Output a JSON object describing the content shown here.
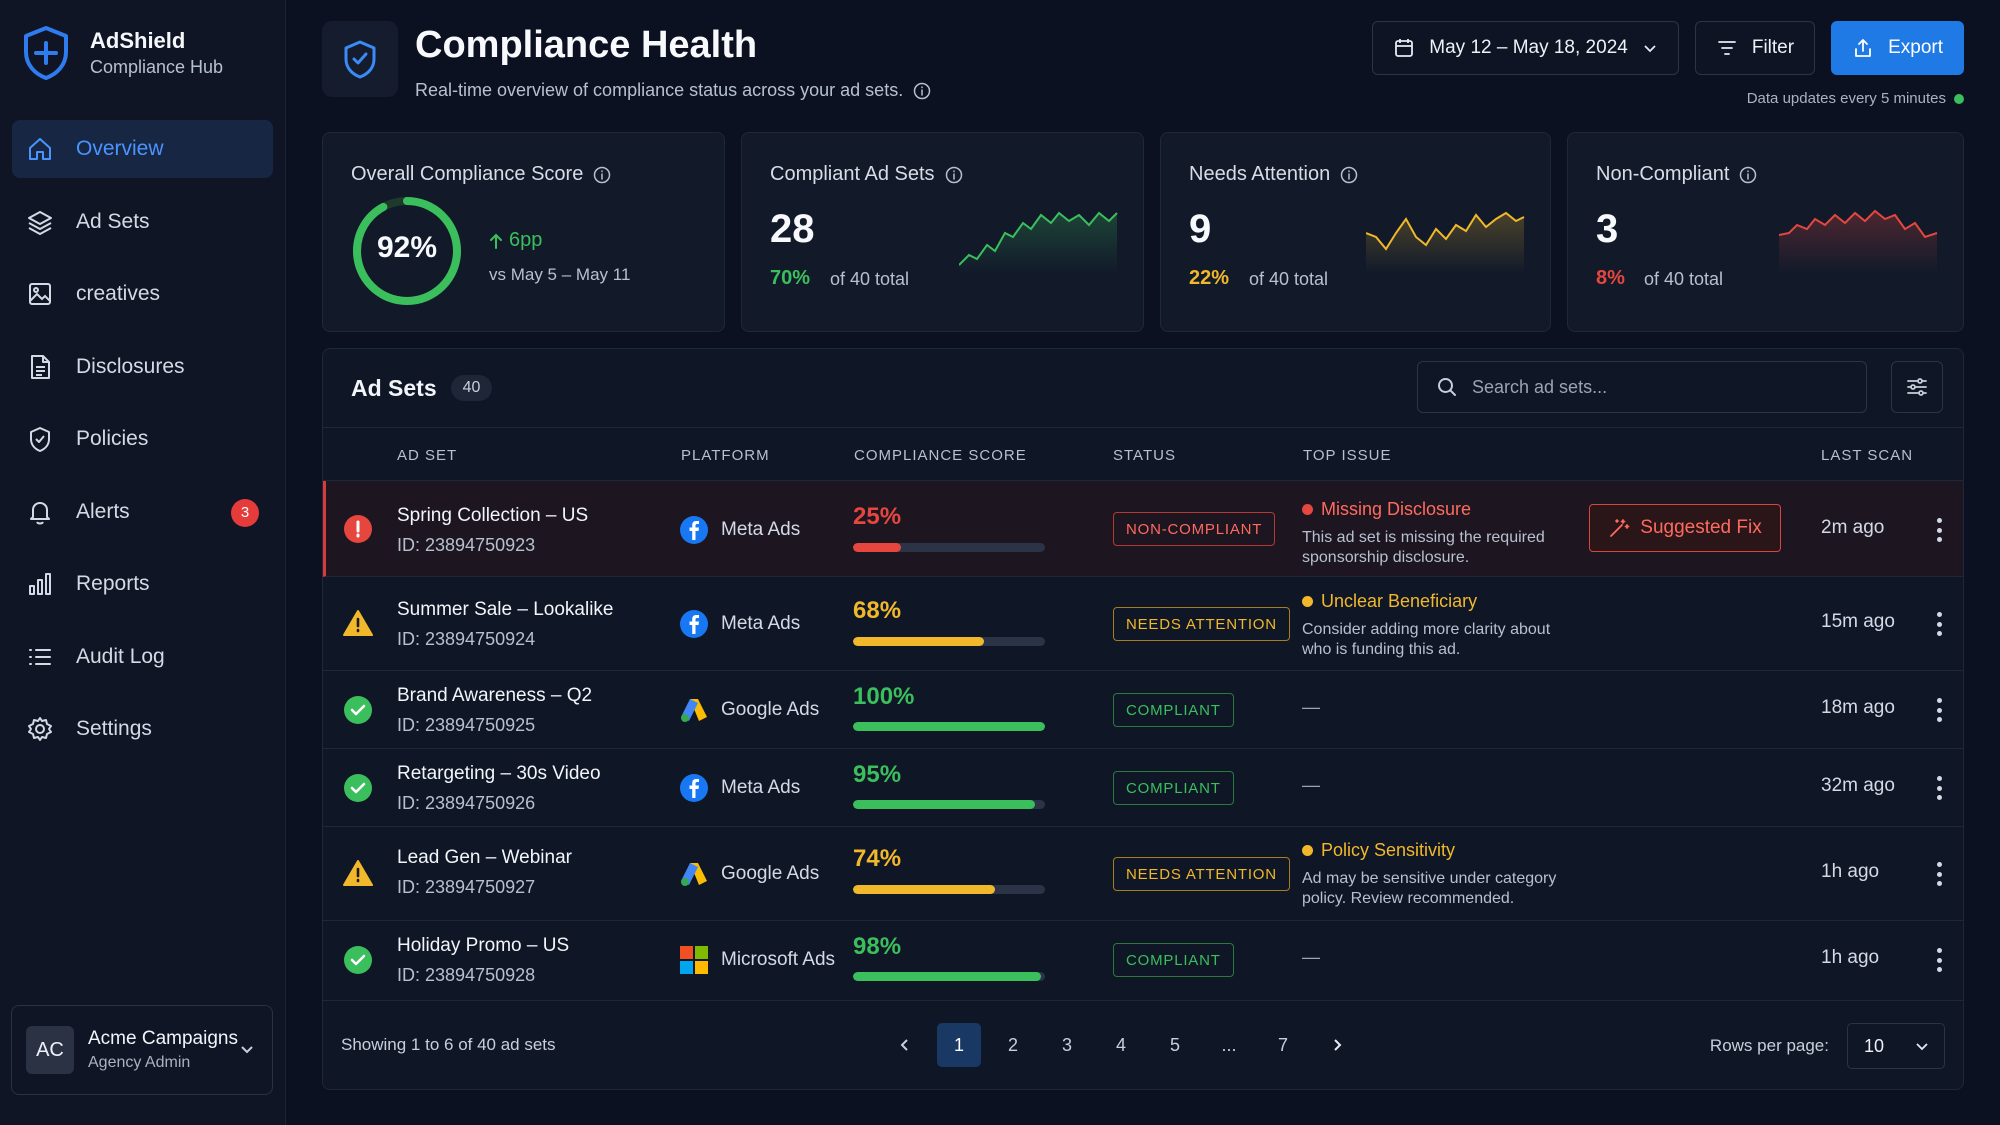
{
  "brand": {
    "name": "AdShield",
    "sub": "Compliance Hub"
  },
  "nav": [
    {
      "label": "Overview",
      "icon": "home-icon",
      "active": true
    },
    {
      "label": "Ad Sets",
      "icon": "layers-icon"
    },
    {
      "label": "creatives",
      "icon": "image-icon"
    },
    {
      "label": "Disclosures",
      "icon": "document-icon"
    },
    {
      "label": "Policies",
      "icon": "shield-icon"
    },
    {
      "label": "Alerts",
      "icon": "bell-icon",
      "badge": "3"
    },
    {
      "label": "Reports",
      "icon": "bar-chart-icon"
    },
    {
      "label": "Audit Log",
      "icon": "list-icon"
    },
    {
      "label": "Settings",
      "icon": "gear-icon"
    }
  ],
  "account": {
    "initials": "AC",
    "name": "Acme Campaigns",
    "role": "Agency Admin"
  },
  "header": {
    "title": "Compliance Health",
    "subtitle": "Real-time overview of compliance status across your ad sets.",
    "date_range": "May 12 – May 18, 2024",
    "filter": "Filter",
    "export": "Export",
    "data_updates": "Data updates every 5 minutes"
  },
  "cards": {
    "score": {
      "title": "Overall Compliance Score",
      "value": "92%",
      "progress": 0.92,
      "delta": "6pp",
      "compare": "vs May 5 – May 11"
    },
    "compliant": {
      "title": "Compliant Ad Sets",
      "value": "28",
      "pct": "70%",
      "total": "of 40 total",
      "color": "#3bbf5c"
    },
    "attention": {
      "title": "Needs Attention",
      "value": "9",
      "pct": "22%",
      "total": "of 40 total",
      "color": "#f2b82b"
    },
    "noncompliant": {
      "title": "Non-Compliant",
      "value": "3",
      "pct": "8%",
      "total": "of 40 total",
      "color": "#e5473f"
    }
  },
  "table": {
    "title": "Ad Sets",
    "count": "40",
    "search_placeholder": "Search ad sets...",
    "columns": [
      "AD SET",
      "PLATFORM",
      "COMPLIANCE SCORE",
      "STATUS",
      "TOP ISSUE",
      "LAST SCAN"
    ],
    "suggested_fix": "Suggested Fix",
    "rows": [
      {
        "name": "Spring Collection – US",
        "id": "ID: 23894750923",
        "platform": "Meta Ads",
        "score": "25%",
        "scoreval": 0.25,
        "status": "NON-COMPLIANT",
        "issue": "Missing Disclosure",
        "issue_desc": "This ad set is missing the required sponsorship disclosure.",
        "scan": "2m ago"
      },
      {
        "name": "Summer Sale – Lookalike",
        "id": "ID: 23894750924",
        "platform": "Meta Ads",
        "score": "68%",
        "scoreval": 0.68,
        "status": "NEEDS ATTENTION",
        "issue": "Unclear Beneficiary",
        "issue_desc": "Consider adding more clarity about who is funding this ad.",
        "scan": "15m ago"
      },
      {
        "name": "Brand Awareness – Q2",
        "id": "ID: 23894750925",
        "platform": "Google Ads",
        "score": "100%",
        "scoreval": 1.0,
        "status": "COMPLIANT",
        "issue": "—",
        "scan": "18m ago"
      },
      {
        "name": "Retargeting – 30s Video",
        "id": "ID: 23894750926",
        "platform": "Meta Ads",
        "score": "95%",
        "scoreval": 0.95,
        "status": "COMPLIANT",
        "issue": "—",
        "scan": "32m ago"
      },
      {
        "name": "Lead Gen – Webinar",
        "id": "ID: 23894750927",
        "platform": "Google Ads",
        "score": "74%",
        "scoreval": 0.74,
        "status": "NEEDS ATTENTION",
        "issue": "Policy Sensitivity",
        "issue_desc": "Ad may be sensitive under category policy. Review recommended.",
        "scan": "1h ago"
      },
      {
        "name": "Holiday Promo – US",
        "id": "ID: 23894750928",
        "platform": "Microsoft Ads",
        "score": "98%",
        "scoreval": 0.98,
        "status": "COMPLIANT",
        "issue": "—",
        "scan": "1h ago"
      }
    ]
  },
  "footer": {
    "showing": "Showing 1 to 6 of 40 ad sets",
    "pages": [
      "1",
      "2",
      "3",
      "4",
      "5",
      "...",
      "7"
    ],
    "rows_per_page_label": "Rows per page:",
    "rows_per_page": "10"
  },
  "colors": {
    "accent": "#1f7ae6",
    "green": "#3bbf5c",
    "yellow": "#f2b82b",
    "red": "#e5473f"
  }
}
